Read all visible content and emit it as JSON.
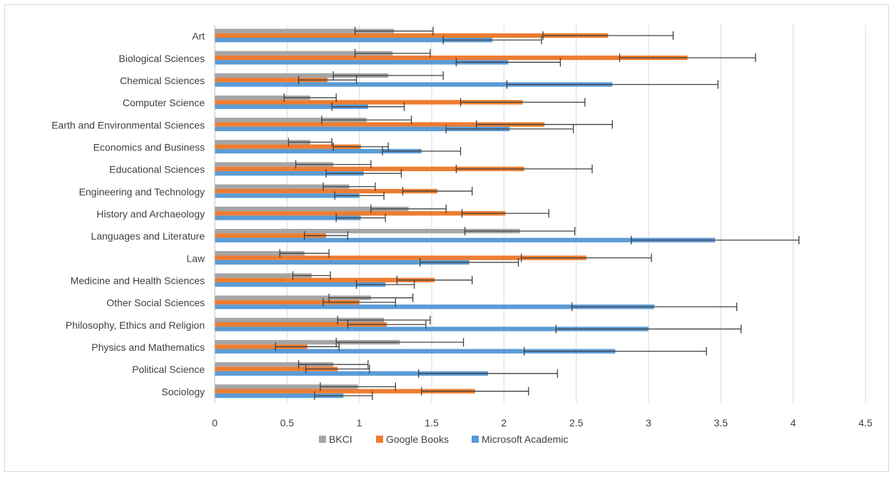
{
  "chart_data": {
    "type": "bar",
    "orientation": "horizontal",
    "categories": [
      "Art",
      "Biological Sciences",
      "Chemical Sciences",
      "Computer Science",
      "Earth and Environmental Sciences",
      "Economics and Business",
      "Educational Sciences",
      "Engineering and Technology",
      "History and Archaeology",
      "Languages and Literature",
      "Law",
      "Medicine and Health Sciences",
      "Other Social Sciences",
      "Philosophy, Ethics and Religion",
      "Physics and Mathematics",
      "Political Science",
      "Sociology"
    ],
    "series": [
      {
        "name": "BKCI",
        "color": "#a5a5a5",
        "values": [
          1.24,
          1.23,
          1.2,
          0.66,
          1.05,
          0.66,
          0.82,
          0.93,
          1.34,
          2.11,
          0.62,
          0.67,
          1.08,
          1.17,
          1.28,
          0.82,
          0.99
        ],
        "error": [
          0.27,
          0.26,
          0.38,
          0.18,
          0.31,
          0.15,
          0.26,
          0.18,
          0.26,
          0.38,
          0.17,
          0.13,
          0.29,
          0.32,
          0.44,
          0.24,
          0.26
        ]
      },
      {
        "name": "Google Books",
        "color": "#ed7d31",
        "values": [
          2.72,
          3.27,
          0.78,
          2.13,
          2.28,
          1.01,
          2.14,
          1.54,
          2.01,
          0.77,
          2.57,
          1.52,
          1.0,
          1.19,
          0.64,
          0.85,
          1.8
        ],
        "error": [
          0.45,
          0.47,
          0.2,
          0.43,
          0.47,
          0.19,
          0.47,
          0.24,
          0.3,
          0.15,
          0.45,
          0.26,
          0.25,
          0.27,
          0.22,
          0.22,
          0.37
        ]
      },
      {
        "name": "Microsoft Academic",
        "color": "#5b9bd5",
        "values": [
          1.92,
          2.03,
          2.75,
          1.06,
          2.04,
          1.43,
          1.03,
          1.0,
          1.01,
          3.46,
          1.76,
          1.18,
          3.04,
          3.0,
          2.77,
          1.89,
          0.89
        ],
        "error": [
          0.34,
          0.36,
          0.73,
          0.25,
          0.44,
          0.27,
          0.26,
          0.17,
          0.17,
          0.58,
          0.34,
          0.2,
          0.57,
          0.64,
          0.63,
          0.48,
          0.2
        ]
      }
    ],
    "x_ticks": [
      "0",
      "0.5",
      "1",
      "1.5",
      "2",
      "2.5",
      "3",
      "3.5",
      "4",
      "4.5"
    ],
    "xlim": [
      0,
      4.5
    ],
    "grid": true,
    "legend_position": "bottom",
    "title": "",
    "xlabel": "",
    "ylabel": ""
  }
}
